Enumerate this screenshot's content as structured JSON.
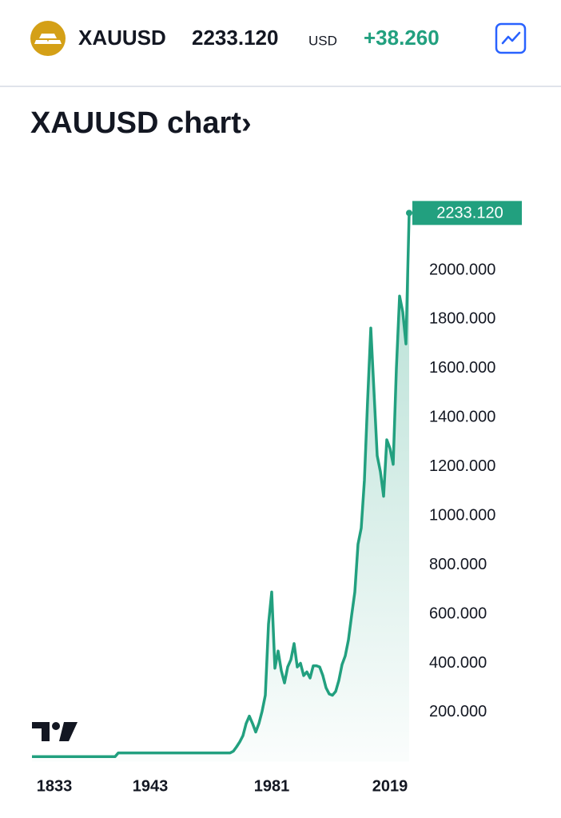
{
  "header": {
    "symbol": "XAUUSD",
    "price": "2233.120",
    "currency": "USD",
    "change": "+38.260"
  },
  "chart_data": {
    "type": "line",
    "title": "XAUUSD chart›",
    "color": "#22a07f",
    "categories": [
      null,
      null,
      null,
      null,
      null,
      null,
      null,
      "1833",
      null,
      null,
      null,
      null,
      null,
      null,
      null,
      null,
      null,
      null,
      null,
      null,
      null,
      null,
      null,
      null,
      null,
      null,
      null,
      null,
      null,
      null,
      null,
      null,
      null,
      null,
      null,
      null,
      null,
      "1943",
      null,
      null,
      null,
      null,
      null,
      null,
      null,
      null,
      null,
      null,
      null,
      null,
      null,
      null,
      null,
      null,
      null,
      null,
      null,
      null,
      null,
      null,
      null,
      null,
      null,
      null,
      null,
      null,
      null,
      null,
      null,
      null,
      null,
      null,
      null,
      null,
      null,
      "1981",
      null,
      null,
      null,
      null,
      null,
      null,
      null,
      null,
      null,
      null,
      null,
      null,
      null,
      null,
      null,
      null,
      null,
      null,
      null,
      null,
      null,
      null,
      null,
      null,
      null,
      null,
      null,
      null,
      null,
      null,
      null,
      null,
      null,
      null,
      null,
      null,
      "2019",
      null,
      null,
      null,
      null,
      null,
      null
    ],
    "values": [
      20,
      20,
      20,
      20,
      20,
      20,
      20,
      20,
      20,
      20,
      20,
      20,
      20,
      20,
      20,
      20,
      20,
      20,
      20,
      20,
      20,
      20,
      20,
      20,
      20,
      20,
      20,
      35,
      35,
      35,
      35,
      35,
      35,
      35,
      35,
      35,
      35,
      35,
      35,
      35,
      35,
      35,
      35,
      35,
      35,
      35,
      35,
      35,
      35,
      35,
      35,
      35,
      35,
      35,
      35,
      35,
      35,
      35,
      35,
      35,
      35,
      35,
      35,
      42,
      60,
      80,
      105,
      155,
      185,
      155,
      120,
      155,
      205,
      270,
      560,
      690,
      380,
      450,
      370,
      320,
      385,
      415,
      480,
      385,
      400,
      350,
      365,
      340,
      390,
      390,
      385,
      350,
      300,
      275,
      270,
      285,
      330,
      395,
      430,
      495,
      595,
      690,
      885,
      950,
      1145,
      1470,
      1765,
      1505,
      1245,
      1180,
      1080,
      1310,
      1275,
      1210,
      1600,
      1895,
      1830,
      1700,
      2233.12
    ],
    "ylim": [
      0,
      2260
    ],
    "yticks": [
      {
        "value": 200,
        "label": "200.000"
      },
      {
        "value": 400,
        "label": "400.000"
      },
      {
        "value": 600,
        "label": "600.000"
      },
      {
        "value": 800,
        "label": "800.000"
      },
      {
        "value": 1000,
        "label": "1000.000"
      },
      {
        "value": 1200,
        "label": "1200.000"
      },
      {
        "value": 1400,
        "label": "1400.000"
      },
      {
        "value": 1600,
        "label": "1600.000"
      },
      {
        "value": 1800,
        "label": "1800.000"
      },
      {
        "value": 2000,
        "label": "2000.000"
      }
    ],
    "grid": false
  }
}
